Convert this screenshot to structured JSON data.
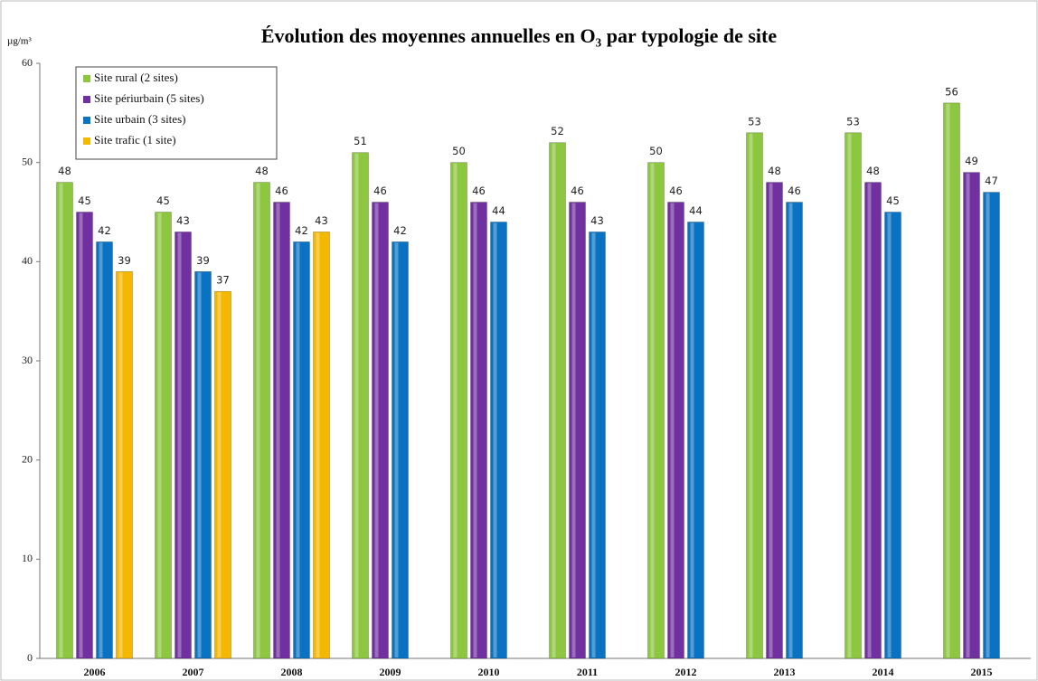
{
  "chart_data": {
    "type": "bar",
    "title": "Évolution des moyennes annuelles en O₃ par typologie de site",
    "y_axis_label": "µg/m³",
    "categories": [
      "2006",
      "2007",
      "2008",
      "2009",
      "2010",
      "2011",
      "2012",
      "2013",
      "2014",
      "2015"
    ],
    "series": [
      {
        "name": "Site rural (2 sites)",
        "color": "#8dc63f",
        "values": [
          48,
          45,
          48,
          51,
          50,
          52,
          50,
          53,
          53,
          56
        ]
      },
      {
        "name": "Site périurbain (5 sites)",
        "color": "#7030a0",
        "values": [
          45,
          43,
          46,
          46,
          46,
          46,
          46,
          48,
          48,
          49
        ]
      },
      {
        "name": "Site urbain (3 sites)",
        "color": "#0a72c2",
        "values": [
          42,
          39,
          42,
          42,
          44,
          43,
          44,
          46,
          45,
          47
        ]
      },
      {
        "name": "Site trafic (1 site)",
        "color": "#f5b800",
        "values": [
          39,
          37,
          43,
          null,
          null,
          null,
          null,
          null,
          null,
          null
        ]
      }
    ],
    "ylim": [
      0,
      60
    ],
    "yticks": [
      0,
      10,
      20,
      30,
      40,
      50,
      60
    ],
    "grid": false,
    "legend": "top-left"
  }
}
